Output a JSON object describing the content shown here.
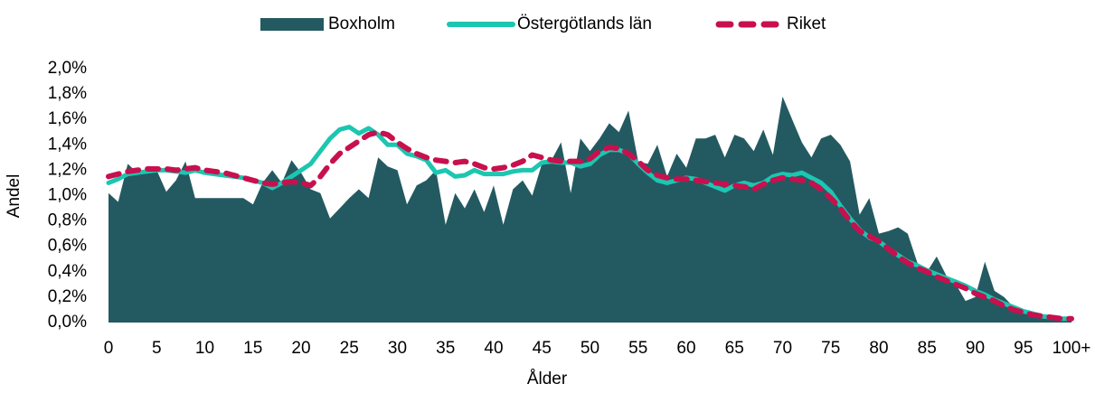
{
  "chart_data": {
    "type": "line",
    "x_label": "Ålder",
    "y_label": "Andel",
    "x": [
      0,
      1,
      2,
      3,
      4,
      5,
      6,
      7,
      8,
      9,
      10,
      11,
      12,
      13,
      14,
      15,
      16,
      17,
      18,
      19,
      20,
      21,
      22,
      23,
      24,
      25,
      26,
      27,
      28,
      29,
      30,
      31,
      32,
      33,
      34,
      35,
      36,
      37,
      38,
      39,
      40,
      41,
      42,
      43,
      44,
      45,
      46,
      47,
      48,
      49,
      50,
      51,
      52,
      53,
      54,
      55,
      56,
      57,
      58,
      59,
      60,
      61,
      62,
      63,
      64,
      65,
      66,
      67,
      68,
      69,
      70,
      71,
      72,
      73,
      74,
      75,
      76,
      77,
      78,
      79,
      80,
      81,
      82,
      83,
      84,
      85,
      86,
      87,
      88,
      89,
      90,
      91,
      92,
      93,
      94,
      95,
      96,
      97,
      98,
      99,
      100
    ],
    "xlim": [
      0,
      100
    ],
    "xticks": [
      0,
      5,
      10,
      15,
      20,
      25,
      30,
      35,
      40,
      45,
      50,
      55,
      60,
      65,
      70,
      75,
      80,
      85,
      90,
      95,
      {
        "value": 100,
        "label": "100+"
      }
    ],
    "ylim": [
      0,
      2.0
    ],
    "yticks": [
      {
        "value": 0,
        "label": "0,0%"
      },
      {
        "value": 0.2,
        "label": "0,2%"
      },
      {
        "value": 0.4,
        "label": "0,4%"
      },
      {
        "value": 0.6,
        "label": "0,6%"
      },
      {
        "value": 0.8,
        "label": "0,8%"
      },
      {
        "value": 1.0,
        "label": "1,0%"
      },
      {
        "value": 1.2,
        "label": "1,2%"
      },
      {
        "value": 1.4,
        "label": "1,4%"
      },
      {
        "value": 1.6,
        "label": "1,6%"
      },
      {
        "value": 1.8,
        "label": "1,8%"
      },
      {
        "value": 2.0,
        "label": "2,0%"
      }
    ],
    "legend": "top",
    "series": [
      {
        "name": "Boxholm",
        "color": "#235a61",
        "kind": "area",
        "values": [
          1.02,
          0.95,
          1.25,
          1.18,
          1.2,
          1.2,
          1.03,
          1.12,
          1.27,
          0.98,
          0.98,
          0.98,
          0.98,
          0.98,
          0.98,
          0.93,
          1.1,
          1.2,
          1.1,
          1.28,
          1.18,
          1.05,
          1.02,
          0.82,
          0.9,
          0.98,
          1.05,
          0.98,
          1.3,
          1.23,
          1.2,
          0.93,
          1.08,
          1.12,
          1.2,
          0.77,
          1.02,
          0.9,
          1.05,
          0.87,
          1.08,
          0.77,
          1.05,
          1.12,
          1.0,
          1.25,
          1.28,
          1.42,
          1.02,
          1.45,
          1.35,
          1.45,
          1.57,
          1.5,
          1.67,
          1.27,
          1.25,
          1.4,
          1.15,
          1.33,
          1.22,
          1.45,
          1.45,
          1.48,
          1.3,
          1.48,
          1.45,
          1.35,
          1.52,
          1.32,
          1.78,
          1.6,
          1.42,
          1.3,
          1.45,
          1.48,
          1.4,
          1.27,
          0.85,
          0.98,
          0.7,
          0.72,
          0.75,
          0.7,
          0.47,
          0.4,
          0.52,
          0.37,
          0.3,
          0.17,
          0.2,
          0.48,
          0.25,
          0.2,
          0.12,
          0.08,
          0.06,
          0.05,
          0.04,
          0.02,
          0.02
        ]
      },
      {
        "name": "Östergötlands län",
        "color": "#1cc6b0",
        "kind": "line",
        "values": [
          1.1,
          1.13,
          1.17,
          1.18,
          1.19,
          1.2,
          1.2,
          1.19,
          1.18,
          1.2,
          1.18,
          1.17,
          1.16,
          1.15,
          1.14,
          1.12,
          1.1,
          1.06,
          1.1,
          1.15,
          1.2,
          1.25,
          1.35,
          1.45,
          1.52,
          1.54,
          1.49,
          1.53,
          1.48,
          1.4,
          1.4,
          1.33,
          1.31,
          1.28,
          1.18,
          1.2,
          1.15,
          1.16,
          1.2,
          1.17,
          1.17,
          1.17,
          1.19,
          1.2,
          1.2,
          1.26,
          1.27,
          1.26,
          1.26,
          1.23,
          1.25,
          1.32,
          1.36,
          1.36,
          1.33,
          1.25,
          1.18,
          1.12,
          1.1,
          1.12,
          1.14,
          1.13,
          1.1,
          1.07,
          1.04,
          1.08,
          1.1,
          1.08,
          1.1,
          1.15,
          1.17,
          1.16,
          1.18,
          1.14,
          1.1,
          1.03,
          0.92,
          0.82,
          0.73,
          0.67,
          0.64,
          0.58,
          0.53,
          0.48,
          0.45,
          0.41,
          0.38,
          0.35,
          0.32,
          0.29,
          0.25,
          0.22,
          0.18,
          0.15,
          0.12,
          0.09,
          0.07,
          0.05,
          0.04,
          0.03,
          0.03
        ]
      },
      {
        "name": "Riket",
        "color": "#c8104e",
        "kind": "line",
        "dashed": true,
        "values": [
          1.15,
          1.17,
          1.19,
          1.2,
          1.21,
          1.21,
          1.21,
          1.2,
          1.21,
          1.22,
          1.2,
          1.19,
          1.18,
          1.16,
          1.14,
          1.12,
          1.1,
          1.09,
          1.1,
          1.11,
          1.1,
          1.08,
          1.15,
          1.25,
          1.33,
          1.38,
          1.43,
          1.48,
          1.5,
          1.48,
          1.42,
          1.37,
          1.33,
          1.3,
          1.28,
          1.27,
          1.26,
          1.27,
          1.25,
          1.22,
          1.21,
          1.22,
          1.24,
          1.27,
          1.32,
          1.3,
          1.28,
          1.27,
          1.27,
          1.27,
          1.29,
          1.35,
          1.38,
          1.37,
          1.33,
          1.27,
          1.2,
          1.16,
          1.14,
          1.13,
          1.13,
          1.12,
          1.11,
          1.1,
          1.09,
          1.08,
          1.07,
          1.05,
          1.09,
          1.12,
          1.14,
          1.13,
          1.12,
          1.1,
          1.05,
          0.98,
          0.9,
          0.8,
          0.72,
          0.68,
          0.64,
          0.58,
          0.52,
          0.47,
          0.43,
          0.4,
          0.36,
          0.33,
          0.3,
          0.27,
          0.23,
          0.2,
          0.17,
          0.13,
          0.1,
          0.08,
          0.06,
          0.05,
          0.04,
          0.03,
          0.03
        ]
      }
    ]
  }
}
